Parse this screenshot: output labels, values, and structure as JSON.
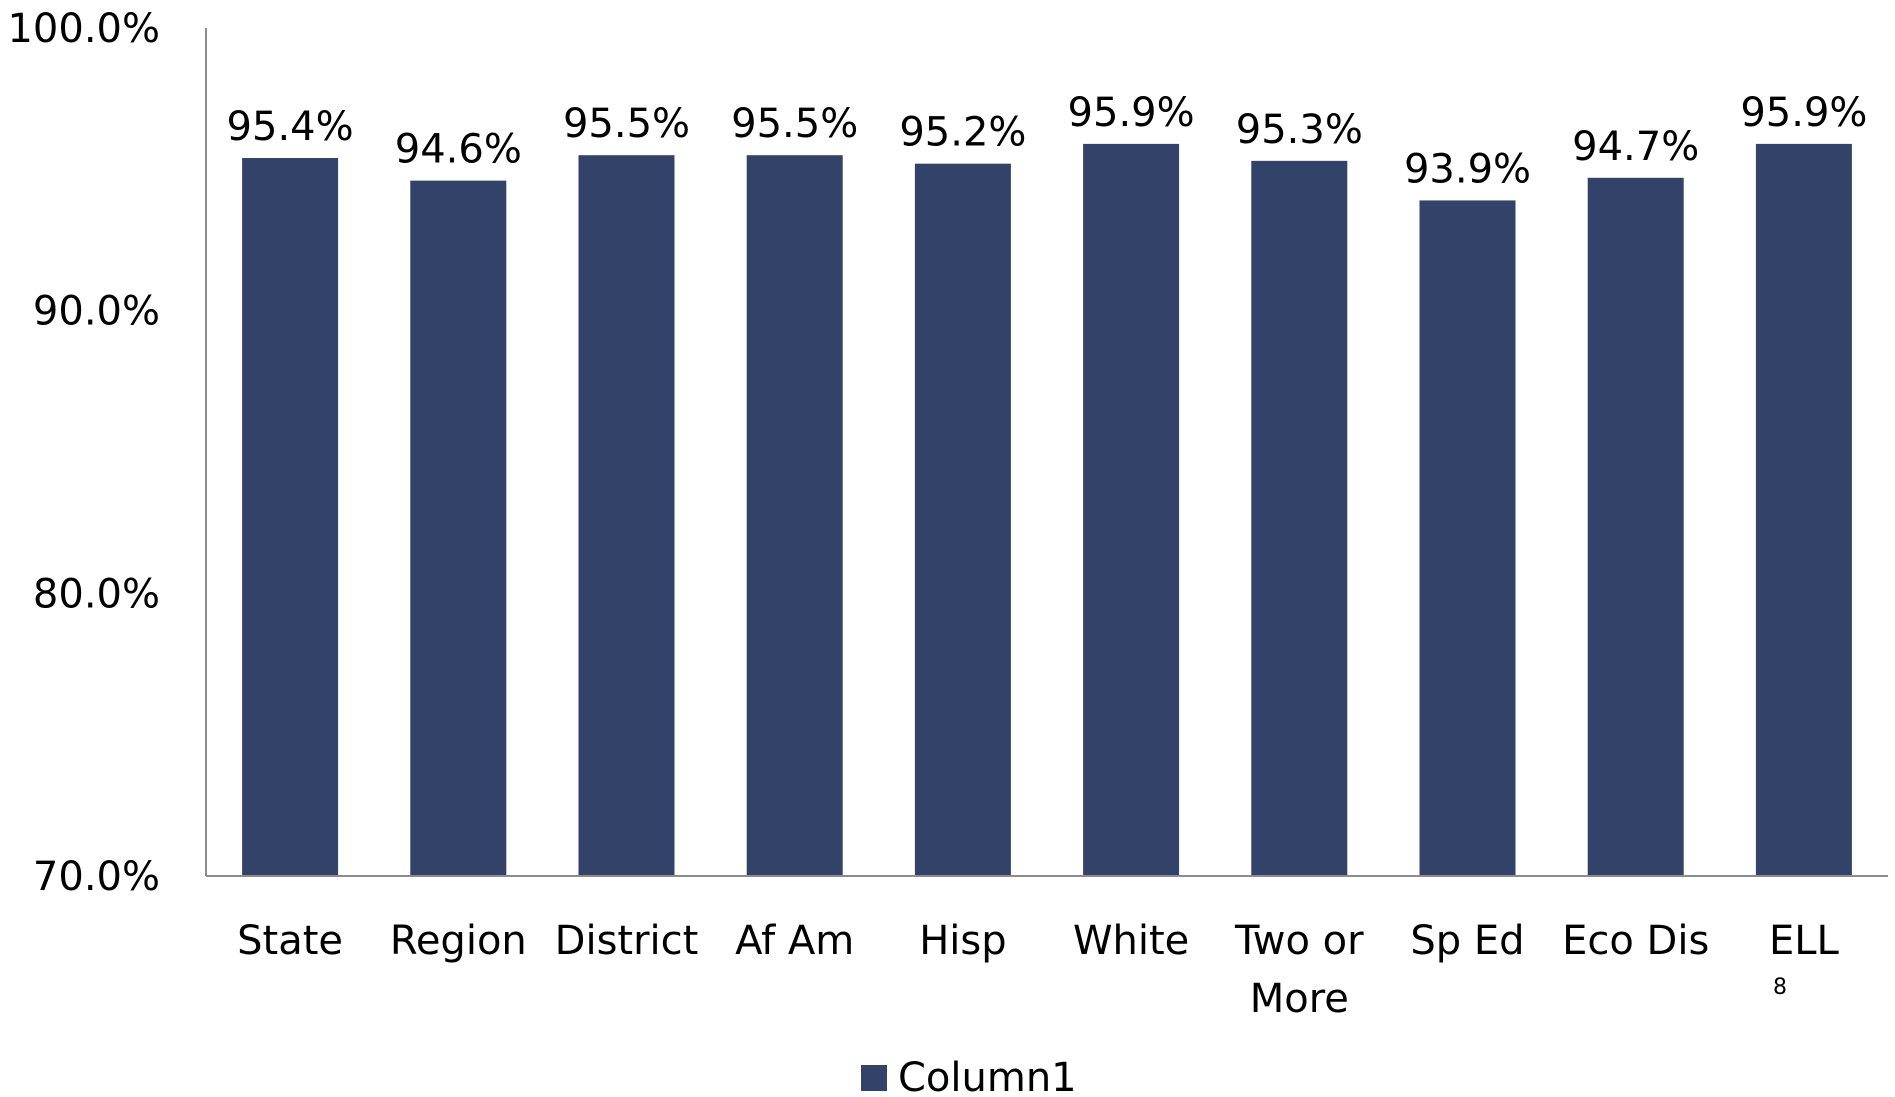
{
  "page_number": "8",
  "chart_data": {
    "type": "bar",
    "categories": [
      "State",
      "Region",
      "District",
      "Af Am",
      "Hisp",
      "White",
      "Two or More",
      "Sp Ed",
      "Eco Dis",
      "ELL"
    ],
    "category_lines": [
      [
        "State"
      ],
      [
        "Region"
      ],
      [
        "District"
      ],
      [
        "Af Am"
      ],
      [
        "Hisp"
      ],
      [
        "White"
      ],
      [
        "Two or",
        "More"
      ],
      [
        "Sp Ed"
      ],
      [
        "Eco Dis"
      ],
      [
        "ELL"
      ]
    ],
    "series": [
      {
        "name": "Column1",
        "values": [
          95.4,
          94.6,
          95.5,
          95.5,
          95.2,
          95.9,
          95.3,
          93.9,
          94.7,
          95.9
        ],
        "labels": [
          "95.4%",
          "94.6%",
          "95.5%",
          "95.5%",
          "95.2%",
          "95.9%",
          "95.3%",
          "93.9%",
          "94.7%",
          "95.9%"
        ],
        "color": "#324268"
      }
    ],
    "ylim": [
      70,
      100
    ],
    "yticks": [
      70,
      80,
      90,
      100
    ],
    "ytick_labels": [
      "70.0%",
      "80.0%",
      "90.0%",
      "100.0%"
    ],
    "title": "",
    "xlabel": "",
    "ylabel": "",
    "grid": false,
    "legend_position": "bottom",
    "axis_color": "#8c8c8c"
  }
}
